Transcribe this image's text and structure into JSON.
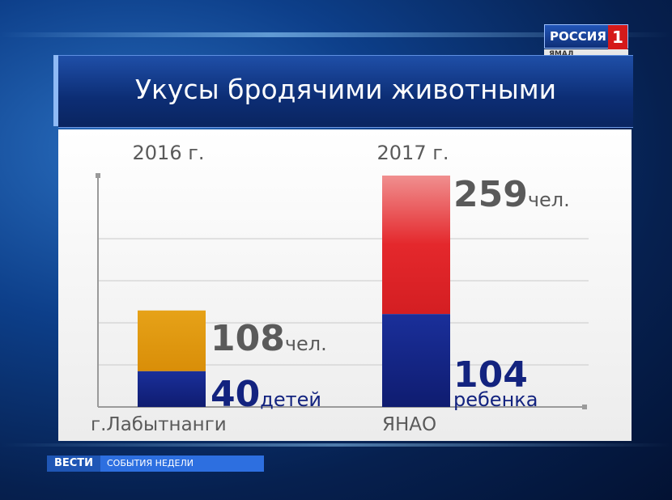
{
  "channel": {
    "name": "РОССИЯ",
    "number": "1",
    "region": "ЯМАЛ"
  },
  "title": "Укусы бродячими животными",
  "ticker": {
    "brand": "ВЕСТИ",
    "program": "СОБЫТИЯ НЕДЕЛИ"
  },
  "colors": {
    "orange": "#e09a10",
    "navy": "#13237f",
    "red": "#e0242a",
    "grey_text": "#5a5a5a"
  },
  "chart_data": {
    "type": "bar",
    "title": "Укусы бродячими животными",
    "categories": [
      "г.Лабытнанги",
      "ЯНАО"
    ],
    "years": [
      "2016 г.",
      "2017 г."
    ],
    "series": [
      {
        "name": "children",
        "values": [
          40,
          104
        ],
        "labels": [
          "40",
          "104"
        ],
        "units": [
          "детей",
          "ребенка"
        ]
      },
      {
        "name": "total",
        "values": [
          108,
          259
        ],
        "labels": [
          "108",
          "259"
        ],
        "units": [
          "чел.",
          "чел."
        ]
      }
    ],
    "grid": true
  }
}
